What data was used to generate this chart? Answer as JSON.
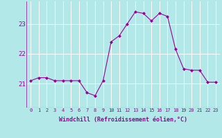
{
  "x": [
    0,
    1,
    2,
    3,
    4,
    5,
    6,
    7,
    8,
    9,
    10,
    11,
    12,
    13,
    14,
    15,
    16,
    17,
    18,
    19,
    20,
    21,
    22,
    23
  ],
  "y": [
    21.1,
    21.2,
    21.2,
    21.1,
    21.1,
    21.1,
    21.1,
    20.7,
    20.6,
    21.1,
    22.4,
    22.6,
    23.0,
    23.4,
    23.35,
    23.1,
    23.35,
    23.25,
    22.15,
    21.5,
    21.45,
    21.45,
    21.05,
    21.05
  ],
  "line_color": "#990099",
  "marker": "D",
  "marker_size": 2.0,
  "bg_color": "#b3e8e8",
  "grid_color": "#ffffff",
  "xlabel": "Windchill (Refroidissement éolien,°C)",
  "xlabel_color": "#990099",
  "tick_color": "#990099",
  "yticks": [
    21,
    22,
    23
  ],
  "ylim": [
    20.2,
    23.75
  ],
  "xlim": [
    -0.5,
    23.5
  ],
  "xtick_fontsize": 5.0,
  "ytick_fontsize": 6.5,
  "xlabel_fontsize": 6.0
}
